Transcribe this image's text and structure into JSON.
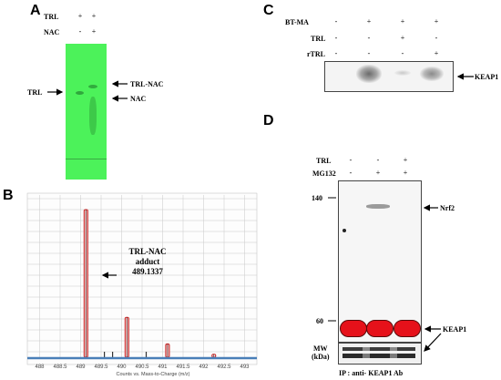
{
  "panel_a": {
    "letter": "A",
    "rows": [
      {
        "label": "TRL",
        "signs": [
          "+",
          "+"
        ]
      },
      {
        "label": "NAC",
        "signs": [
          "-",
          "+"
        ]
      }
    ],
    "left_label": "TRL",
    "right_labels": [
      "TRL-NAC",
      "NAC"
    ]
  },
  "panel_b": {
    "letter": "B",
    "annotation": [
      "TRL-NAC",
      "adduct",
      "489.1337"
    ],
    "axis_caption": "Counts vs. Mass-to-Charge (m/z)"
  },
  "panel_c": {
    "letter": "C",
    "rows": [
      {
        "label": "BT-MA",
        "signs": [
          "-",
          "+",
          "+",
          "+"
        ]
      },
      {
        "label": "TRL",
        "signs": [
          "-",
          "-",
          "+",
          "-"
        ]
      },
      {
        "label": "rTRL",
        "signs": [
          "-",
          "-",
          "-",
          "+"
        ]
      }
    ],
    "band_label": "KEAP1"
  },
  "panel_d": {
    "letter": "D",
    "rows": [
      {
        "label": "TRL",
        "signs": [
          "-",
          "-",
          "+"
        ]
      },
      {
        "label": "MG132",
        "signs": [
          "-",
          "+",
          "+"
        ]
      }
    ],
    "mw_markers": [
      "140",
      "60"
    ],
    "band_labels": [
      "Nrf2",
      "KEAP1"
    ],
    "mw_box_label": [
      "MW",
      "(kDa)"
    ],
    "ip_caption": "IP : anti- KEAP1 Ab"
  },
  "chart_data": {
    "type": "bar",
    "xlabel": "Counts vs. Mass-to-Charge (m/z)",
    "xlim": [
      487.7,
      493.3
    ],
    "x_ticks": [
      "488",
      "488.5",
      "489",
      "489.5",
      "490",
      "490.5",
      "491",
      "491.5",
      "492",
      "492.5",
      "493"
    ],
    "peaks": [
      {
        "mz": 489.13,
        "rel": 1.0,
        "style": "red"
      },
      {
        "mz": 489.58,
        "rel": 0.015,
        "style": "dark"
      },
      {
        "mz": 489.78,
        "rel": 0.01,
        "style": "dark"
      },
      {
        "mz": 490.13,
        "rel": 0.27,
        "style": "red"
      },
      {
        "mz": 490.6,
        "rel": 0.008,
        "style": "dark"
      },
      {
        "mz": 491.12,
        "rel": 0.09,
        "style": "red"
      },
      {
        "mz": 492.25,
        "rel": 0.02,
        "style": "red-open"
      }
    ],
    "colors": {
      "peak": "#cc2a2a",
      "baseline": "#4a7fb8",
      "grid": "#c8c8c8"
    }
  }
}
